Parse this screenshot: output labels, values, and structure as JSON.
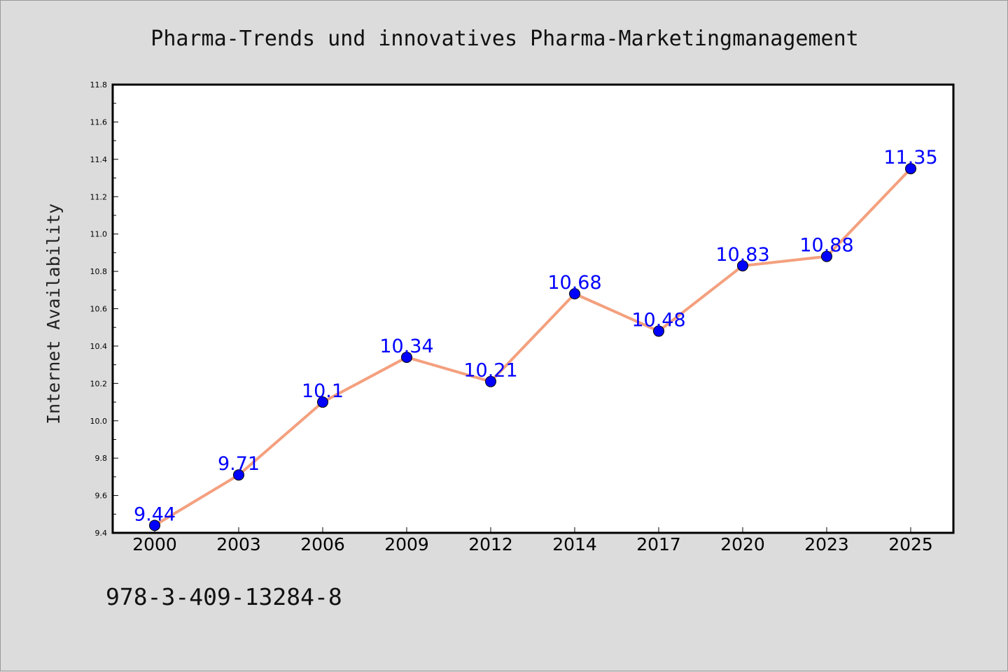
{
  "chart_data": {
    "type": "line",
    "title": "Pharma-Trends und innovatives Pharma-Marketingmanagement",
    "xlabel": "",
    "ylabel": "Internet Availability",
    "categories": [
      "2000",
      "2003",
      "2006",
      "2009",
      "2012",
      "2014",
      "2017",
      "2020",
      "2023",
      "2025"
    ],
    "series": [
      {
        "values": [
          9.44,
          9.71,
          10.1,
          10.34,
          10.21,
          10.68,
          10.48,
          10.83,
          10.88,
          11.35
        ],
        "data_labels": [
          "9.44",
          "9.71",
          "10.1",
          "10.34",
          "10.21",
          "10.68",
          "10.48",
          "10.83",
          "10.88",
          "11.35"
        ],
        "line_color": "#f4a07e",
        "marker_color": "#0000ff"
      }
    ],
    "ylim": [
      9.4,
      11.8
    ],
    "y_ticks": [
      "9.4",
      "9.6",
      "9.8",
      "10.0",
      "10.2",
      "10.4",
      "10.6",
      "10.8",
      "11.0",
      "11.2",
      "11.4",
      "11.6",
      "11.8"
    ],
    "grid": false,
    "legend": "none",
    "label_color": "#0000ff",
    "background_color": "#dcdcdc",
    "plot_background_color": "#ffffff"
  },
  "footer": {
    "isbn": "978-3-409-13284-8"
  }
}
